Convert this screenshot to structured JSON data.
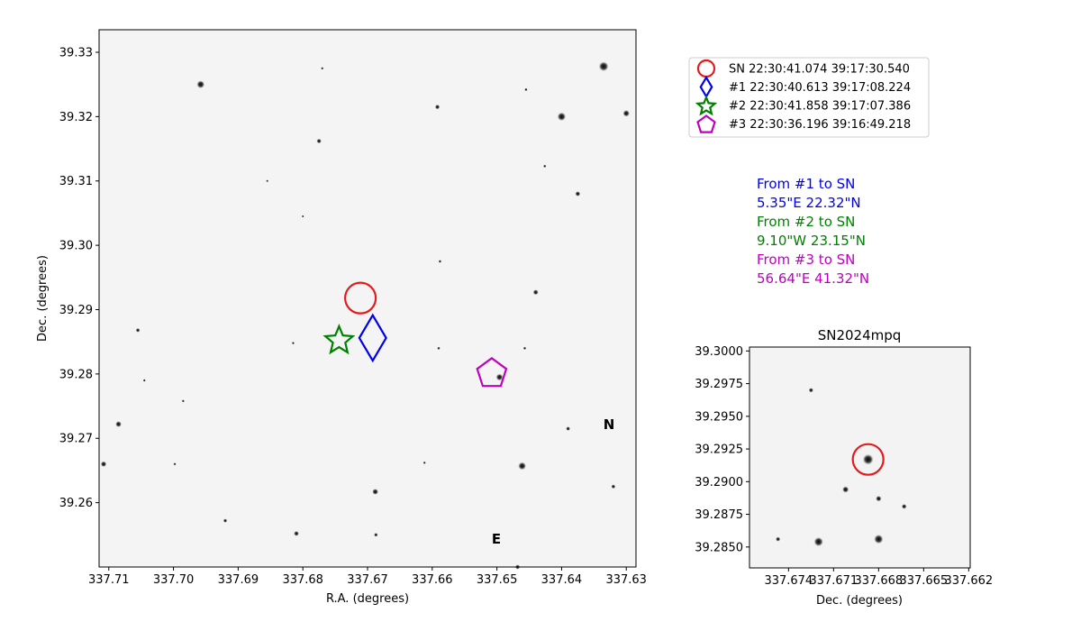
{
  "chart_data": [
    {
      "type": "scatter",
      "title": "",
      "xlabel": "R.A. (degrees)",
      "ylabel": "Dec. (degrees)",
      "xlim": [
        337.7115,
        337.6285
      ],
      "ylim": [
        39.25,
        39.3335
      ],
      "xticks": [
        {
          "value": 337.71,
          "label": "337.71"
        },
        {
          "value": 337.7,
          "label": "337.70"
        },
        {
          "value": 337.69,
          "label": "337.69"
        },
        {
          "value": 337.68,
          "label": "337.68"
        },
        {
          "value": 337.67,
          "label": "337.67"
        },
        {
          "value": 337.66,
          "label": "337.66"
        },
        {
          "value": 337.65,
          "label": "337.65"
        },
        {
          "value": 337.64,
          "label": "337.64"
        },
        {
          "value": 337.63,
          "label": "337.63"
        }
      ],
      "yticks": [
        {
          "value": 39.26,
          "label": "39.26"
        },
        {
          "value": 39.27,
          "label": "39.27"
        },
        {
          "value": 39.28,
          "label": "39.28"
        },
        {
          "value": 39.29,
          "label": "39.29"
        },
        {
          "value": 39.3,
          "label": "39.30"
        },
        {
          "value": 39.31,
          "label": "39.31"
        },
        {
          "value": 39.32,
          "label": "39.32"
        },
        {
          "value": 39.33,
          "label": "39.33"
        }
      ],
      "grid": false,
      "background": "grayscale sky image",
      "markers": [
        {
          "name": "SN",
          "label": "SN 22:30:41.074 39:17:30.540",
          "ra": 337.6711,
          "dec": 39.2918,
          "shape": "circle",
          "color": "#e41a1c"
        },
        {
          "name": "#1",
          "label": "#1 22:30:40.613 39:17:08.224",
          "ra": 337.6692,
          "dec": 39.2856,
          "shape": "diamond",
          "color": "#0000ee"
        },
        {
          "name": "#2",
          "label": "#2 22:30:41.858 39:17:07.386",
          "ra": 337.6744,
          "dec": 39.2854,
          "shape": "star",
          "color": "#008000"
        },
        {
          "name": "#3",
          "label": "#3 22:30:36.196 39:16:49.218",
          "ra": 337.6508,
          "dec": 39.2803,
          "shape": "pentagon",
          "color": "#bf00bf"
        }
      ],
      "stars": [
        {
          "ra": 337.6335,
          "dec": 39.3278,
          "mag": 3.2
        },
        {
          "ra": 337.6958,
          "dec": 39.325,
          "mag": 2.6
        },
        {
          "ra": 337.64,
          "dec": 39.32,
          "mag": 2.8
        },
        {
          "ra": 337.63,
          "dec": 39.3205,
          "mag": 2.2
        },
        {
          "ra": 337.6592,
          "dec": 39.3215,
          "mag": 1.6
        },
        {
          "ra": 337.6775,
          "dec": 39.3162,
          "mag": 1.6
        },
        {
          "ra": 337.6375,
          "dec": 39.308,
          "mag": 1.7
        },
        {
          "ra": 337.644,
          "dec": 39.2927,
          "mag": 1.8
        },
        {
          "ra": 337.7055,
          "dec": 39.2868,
          "mag": 1.4
        },
        {
          "ra": 337.6496,
          "dec": 39.2795,
          "mag": 2.3
        },
        {
          "ra": 337.7085,
          "dec": 39.2722,
          "mag": 2.0
        },
        {
          "ra": 337.639,
          "dec": 39.2715,
          "mag": 1.4
        },
        {
          "ra": 337.7108,
          "dec": 39.266,
          "mag": 1.9
        },
        {
          "ra": 337.6461,
          "dec": 39.2657,
          "mag": 2.6
        },
        {
          "ra": 337.6688,
          "dec": 39.2617,
          "mag": 2.0
        },
        {
          "ra": 337.632,
          "dec": 39.2625,
          "mag": 1.4
        },
        {
          "ra": 337.692,
          "dec": 39.2572,
          "mag": 1.3
        },
        {
          "ra": 337.681,
          "dec": 39.2552,
          "mag": 1.7
        },
        {
          "ra": 337.6687,
          "dec": 39.255,
          "mag": 1.3
        },
        {
          "ra": 337.6468,
          "dec": 39.25,
          "mag": 1.6
        },
        {
          "ra": 337.6455,
          "dec": 39.3242,
          "mag": 1.0
        },
        {
          "ra": 337.6426,
          "dec": 39.3123,
          "mag": 1.0
        },
        {
          "ra": 337.6588,
          "dec": 39.2975,
          "mag": 1.0
        },
        {
          "ra": 337.659,
          "dec": 39.284,
          "mag": 1.0
        },
        {
          "ra": 337.6457,
          "dec": 39.284,
          "mag": 1.0
        },
        {
          "ra": 337.6815,
          "dec": 39.2848,
          "mag": 0.9
        },
        {
          "ra": 337.6985,
          "dec": 39.2758,
          "mag": 0.9
        },
        {
          "ra": 337.7045,
          "dec": 39.279,
          "mag": 0.9
        },
        {
          "ra": 337.6612,
          "dec": 39.2662,
          "mag": 0.9
        },
        {
          "ra": 337.6998,
          "dec": 39.266,
          "mag": 0.9
        },
        {
          "ra": 337.677,
          "dec": 39.3275,
          "mag": 0.9
        },
        {
          "ra": 337.6855,
          "dec": 39.31,
          "mag": 0.8
        },
        {
          "ra": 337.68,
          "dec": 39.3045,
          "mag": 0.8
        }
      ]
    },
    {
      "type": "scatter",
      "title": "SN2024mpq",
      "xlabel": "Dec. (degrees)",
      "ylabel": "",
      "xlim": [
        337.6766,
        337.6619
      ],
      "ylim": [
        39.2834,
        39.3003
      ],
      "xticks": [
        {
          "value": 337.674,
          "label": "337.674"
        },
        {
          "value": 337.671,
          "label": "337.671"
        },
        {
          "value": 337.668,
          "label": "337.668"
        },
        {
          "value": 337.665,
          "label": "337.665"
        },
        {
          "value": 337.662,
          "label": "337.662"
        }
      ],
      "yticks": [
        {
          "value": 39.285,
          "label": "39.2850"
        },
        {
          "value": 39.2875,
          "label": "39.2875"
        },
        {
          "value": 39.29,
          "label": "39.2900"
        },
        {
          "value": 39.2925,
          "label": "39.2925"
        },
        {
          "value": 39.295,
          "label": "39.2950"
        },
        {
          "value": 39.2975,
          "label": "39.2975"
        },
        {
          "value": 39.3,
          "label": "39.3000"
        }
      ],
      "grid": false,
      "markers": [
        {
          "name": "SN",
          "ra": 337.6687,
          "dec": 39.2917,
          "shape": "circle",
          "color": "#e41a1c"
        }
      ],
      "stars": [
        {
          "ra": 337.6687,
          "dec": 39.2917,
          "mag": 3.0
        },
        {
          "ra": 337.668,
          "dec": 39.2856,
          "mag": 2.6
        },
        {
          "ra": 337.672,
          "dec": 39.2854,
          "mag": 2.6
        },
        {
          "ra": 337.6702,
          "dec": 39.2894,
          "mag": 1.8
        },
        {
          "ra": 337.668,
          "dec": 39.2887,
          "mag": 1.6
        },
        {
          "ra": 337.6663,
          "dec": 39.2881,
          "mag": 1.4
        },
        {
          "ra": 337.6747,
          "dec": 39.2856,
          "mag": 1.3
        },
        {
          "ra": 337.6725,
          "dec": 39.297,
          "mag": 1.3
        }
      ]
    }
  ],
  "legend": {
    "entries": [
      {
        "label": "SN 22:30:41.074 39:17:30.540",
        "shape": "circle",
        "color": "#e41a1c"
      },
      {
        "label": "#1 22:30:40.613 39:17:08.224",
        "shape": "diamond",
        "color": "#0000ee"
      },
      {
        "label": "#2 22:30:41.858 39:17:07.386",
        "shape": "star",
        "color": "#008000"
      },
      {
        "label": "#3 22:30:36.196 39:16:49.218",
        "shape": "pentagon",
        "color": "#bf00bf"
      }
    ]
  },
  "compass": {
    "north": "N",
    "east": "E"
  },
  "offsets": [
    {
      "header": "From #1 to SN",
      "value": "5.35\"E 22.32\"N",
      "color": "#0000ee"
    },
    {
      "header": "From #2 to SN",
      "value": "9.10\"W 23.15\"N",
      "color": "#008000"
    },
    {
      "header": "From #3 to SN",
      "value": "56.64\"E 41.32\"N",
      "color": "#bf00bf"
    }
  ]
}
